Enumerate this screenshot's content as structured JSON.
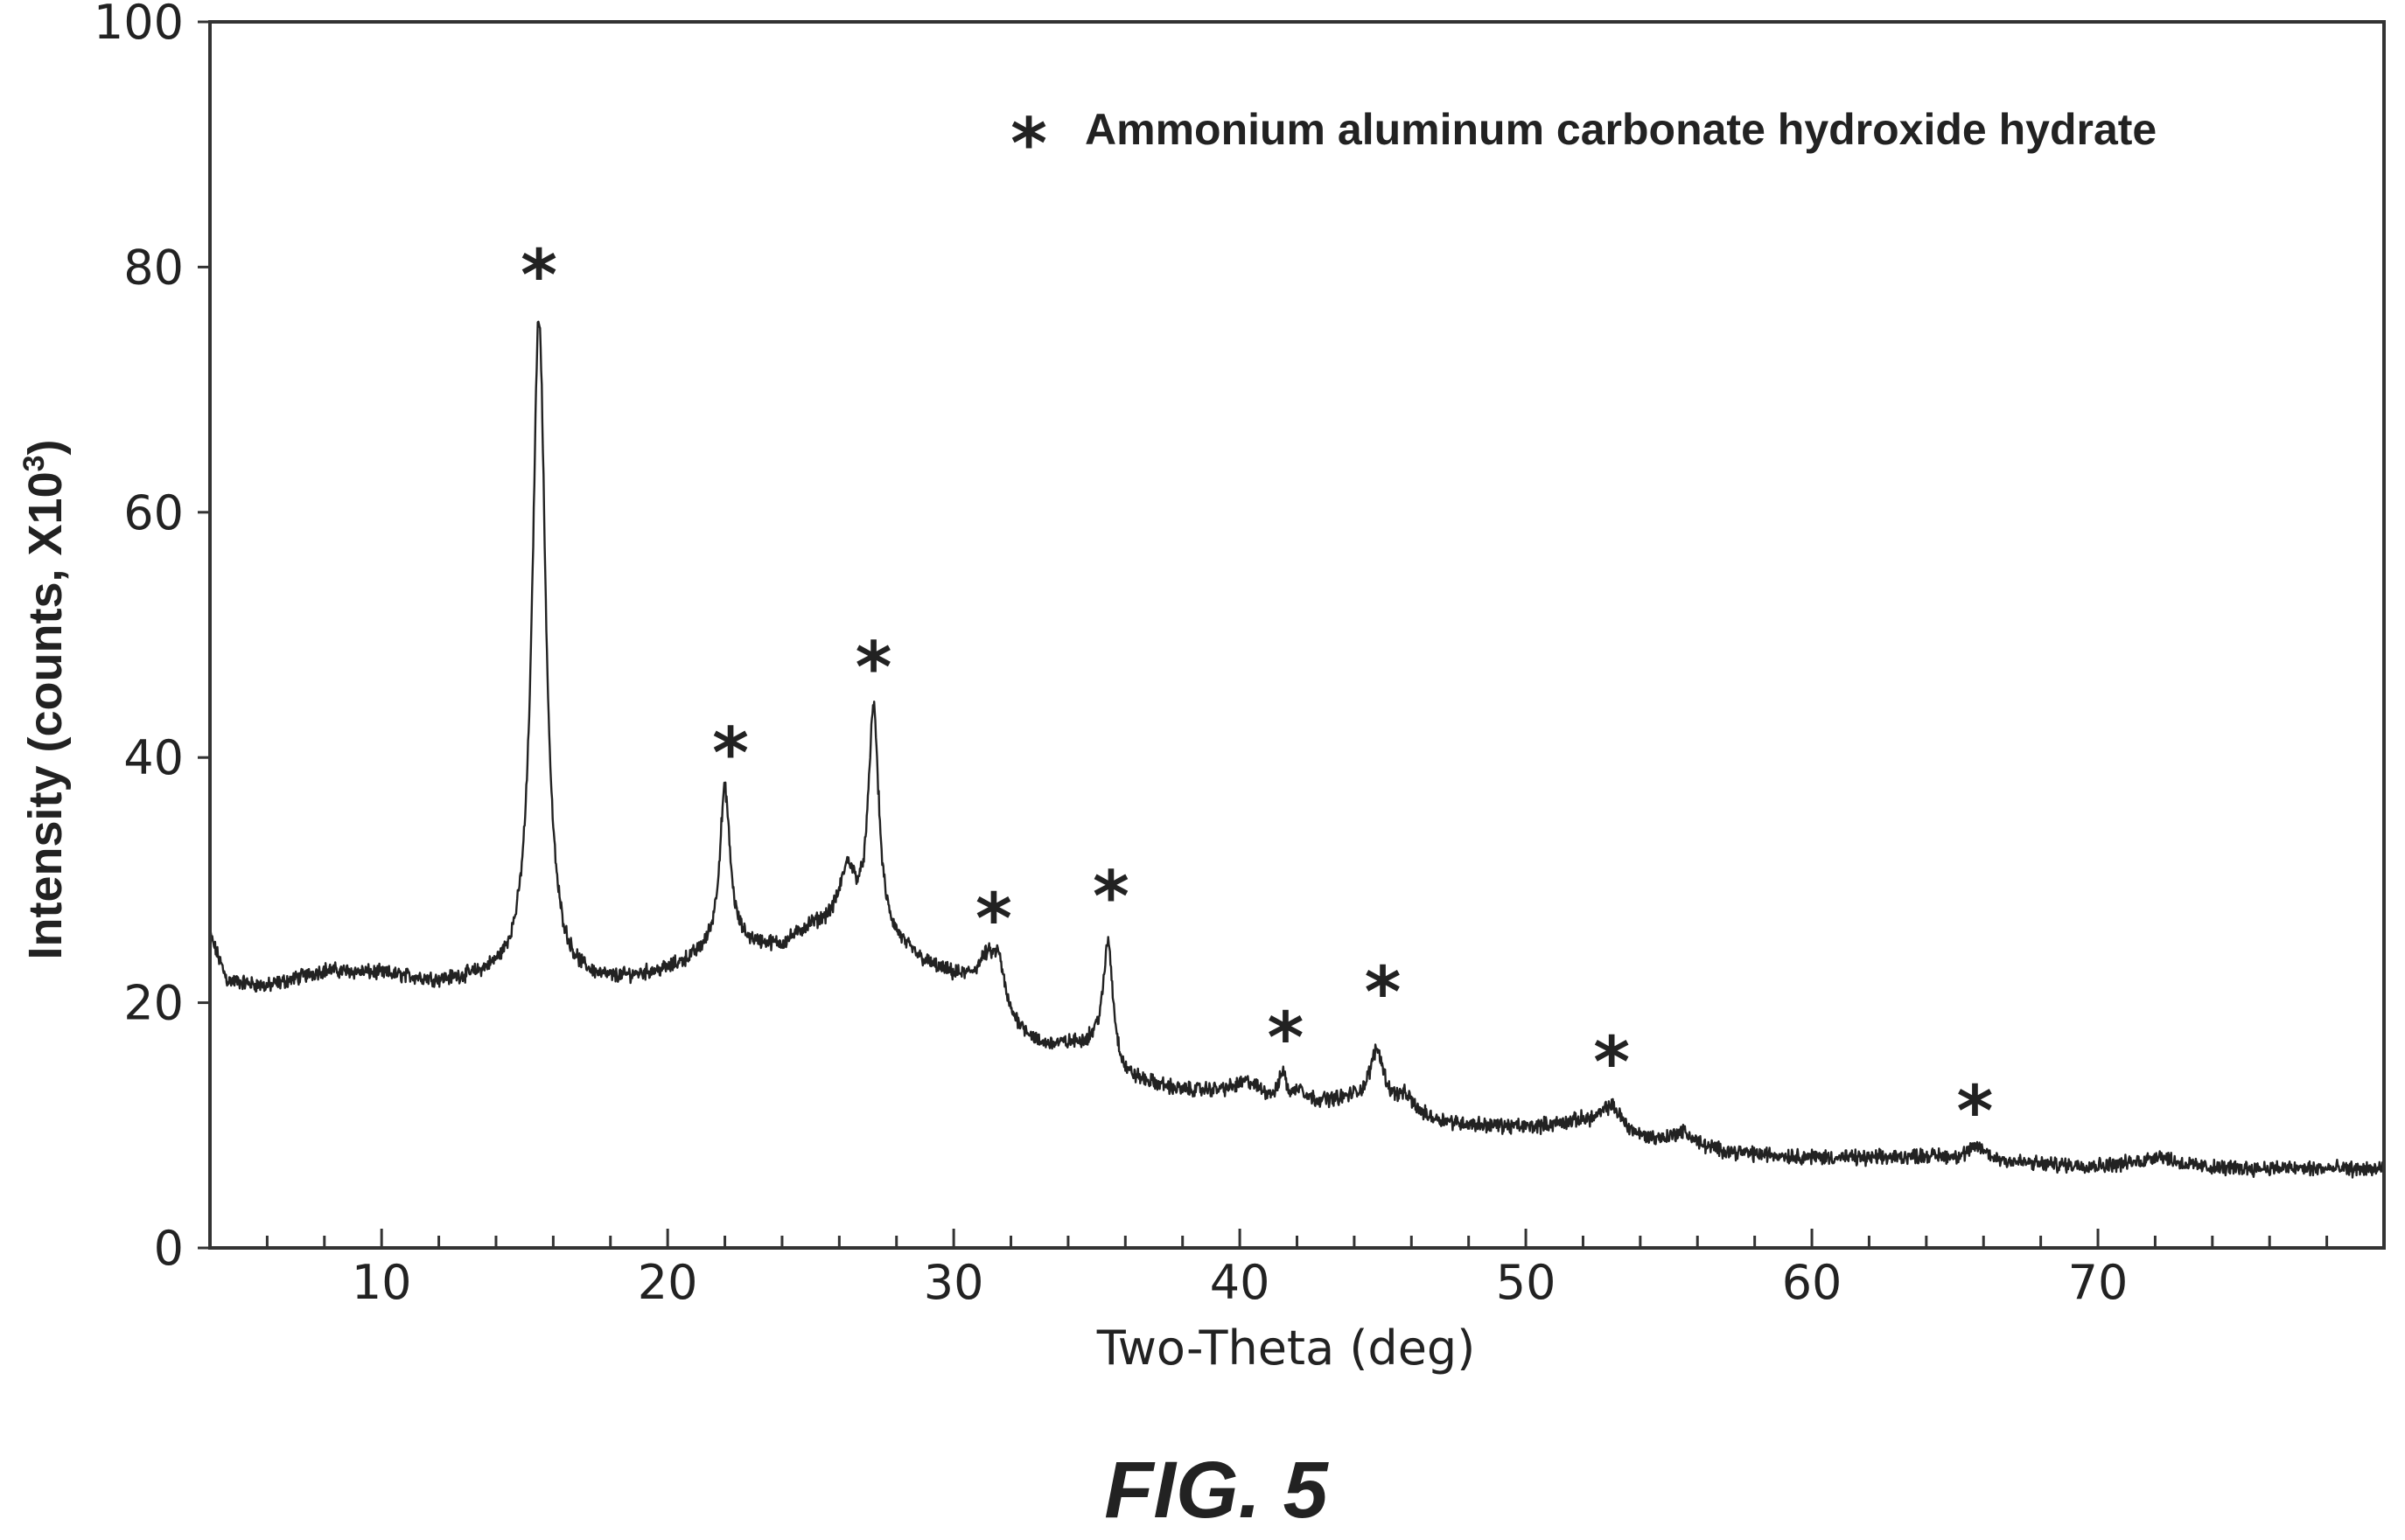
{
  "chart_data": {
    "type": "line",
    "title": "",
    "xlabel": "Two-Theta (deg)",
    "ylabel": "Intensity (counts, X10",
    "ylabel_superscript": "3",
    "ylabel_close": ")",
    "xlim": [
      4,
      80
    ],
    "ylim": [
      0,
      100
    ],
    "x_ticks": [
      10,
      20,
      30,
      40,
      50,
      60,
      70
    ],
    "y_ticks": [
      0,
      20,
      40,
      60,
      80,
      100
    ],
    "x_minor_step": 2,
    "grid": false,
    "legend": {
      "position": "top-right",
      "marker": "*",
      "label": "Ammonium aluminum carbonate hydroxide hydrate"
    },
    "line_color": "#222222",
    "baseline": [
      [
        4,
        25.5
      ],
      [
        4.6,
        21.8
      ],
      [
        6,
        21.3
      ],
      [
        8,
        22.6
      ],
      [
        10,
        22.3
      ],
      [
        12,
        21.6
      ],
      [
        14,
        21.8
      ],
      [
        16,
        21.4
      ],
      [
        18,
        21.5
      ],
      [
        20,
        22.5
      ],
      [
        22,
        24.5
      ],
      [
        24,
        24.5
      ],
      [
        25,
        26.0
      ],
      [
        26,
        26.2
      ],
      [
        28,
        24.5
      ],
      [
        29,
        23.0
      ],
      [
        30,
        22.0
      ],
      [
        31.5,
        21.0
      ],
      [
        32,
        18.5
      ],
      [
        33,
        16.5
      ],
      [
        34,
        16.5
      ],
      [
        35,
        16.5
      ],
      [
        36,
        13.8
      ],
      [
        38,
        12.8
      ],
      [
        40,
        12.8
      ],
      [
        42,
        11.8
      ],
      [
        44,
        12.0
      ],
      [
        46,
        10.5
      ],
      [
        48,
        10.0
      ],
      [
        50,
        9.8
      ],
      [
        52,
        10.2
      ],
      [
        54,
        8.8
      ],
      [
        56,
        8.0
      ],
      [
        58,
        7.6
      ],
      [
        60,
        7.4
      ],
      [
        62,
        7.3
      ],
      [
        64,
        7.5
      ],
      [
        66,
        7.2
      ],
      [
        68,
        6.8
      ],
      [
        70,
        6.7
      ],
      [
        72,
        7.0
      ],
      [
        74,
        6.5
      ],
      [
        76,
        6.5
      ],
      [
        80,
        6.4
      ]
    ],
    "peaks": [
      {
        "x": 15.5,
        "height": 54.5,
        "width": 0.28
      },
      {
        "x": 22.0,
        "height": 12.8,
        "width": 0.22
      },
      {
        "x": 26.3,
        "height": 4.5,
        "width": 0.32
      },
      {
        "x": 27.2,
        "height": 18.5,
        "width": 0.22
      },
      {
        "x": 31.2,
        "height": 2.5,
        "width": 0.4
      },
      {
        "x": 31.6,
        "height": 2.0,
        "width": 0.18
      },
      {
        "x": 35.4,
        "height": 9.5,
        "width": 0.2
      },
      {
        "x": 40.3,
        "height": 0.8,
        "width": 0.4
      },
      {
        "x": 41.5,
        "height": 2.3,
        "width": 0.12
      },
      {
        "x": 42.1,
        "height": 1.2,
        "width": 0.2
      },
      {
        "x": 44.8,
        "height": 4.6,
        "width": 0.3
      },
      {
        "x": 45.8,
        "height": 1.5,
        "width": 0.4
      },
      {
        "x": 53.0,
        "height": 2.0,
        "width": 0.45
      },
      {
        "x": 55.5,
        "height": 1.2,
        "width": 0.5
      },
      {
        "x": 65.8,
        "height": 1.0,
        "width": 0.35
      },
      {
        "x": 72.2,
        "height": 0.6,
        "width": 0.4
      }
    ],
    "annotations": [
      {
        "x": 15.5,
        "y": 79.5,
        "text": "*"
      },
      {
        "x": 22.2,
        "y": 40.5,
        "text": "*"
      },
      {
        "x": 27.2,
        "y": 47.5,
        "text": "*"
      },
      {
        "x": 31.4,
        "y": 27.0,
        "text": "*"
      },
      {
        "x": 35.5,
        "y": 28.8,
        "text": "*"
      },
      {
        "x": 41.6,
        "y": 17.3,
        "text": "*"
      },
      {
        "x": 45.0,
        "y": 21.0,
        "text": "*"
      },
      {
        "x": 53.0,
        "y": 15.3,
        "text": "*"
      },
      {
        "x": 65.7,
        "y": 11.3,
        "text": "*"
      }
    ]
  },
  "caption": "FIG. 5"
}
